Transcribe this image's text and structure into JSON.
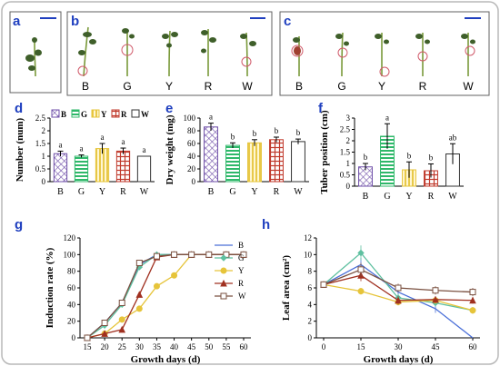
{
  "panels": {
    "a": {
      "letter": "a"
    },
    "b": {
      "letter": "b",
      "labels": [
        "B",
        "G",
        "Y",
        "R",
        "W"
      ]
    },
    "c": {
      "letter": "c",
      "labels": [
        "B",
        "G",
        "Y",
        "R",
        "W"
      ]
    }
  },
  "colors": {
    "scale_bar": "#1f3fbf",
    "tuber_circle": "#d05a6a",
    "B": "#6f4fa8",
    "G": "#2fb86a",
    "Y": "#e6c43a",
    "R": "#c0392b",
    "W": "#333333",
    "frame": "#b8b8b8",
    "panel_box": "#606060"
  },
  "chart_data": [
    {
      "panel": "d",
      "type": "bar",
      "categories": [
        "B",
        "G",
        "Y",
        "R",
        "W"
      ],
      "values": [
        1.1,
        1.0,
        1.3,
        1.2,
        1.0
      ],
      "errors": [
        0.1,
        0.05,
        0.2,
        0.12,
        0.0
      ],
      "sig": [
        "a",
        "a",
        "a",
        "a",
        "a"
      ],
      "ylabel": "Number (num)",
      "ylim": [
        0,
        2.5
      ],
      "yticks": [
        "0",
        "0.5",
        "1",
        "1.5",
        "2",
        "2.5"
      ],
      "legend": [
        "B",
        "G",
        "Y",
        "R",
        "W"
      ]
    },
    {
      "panel": "e",
      "type": "bar",
      "categories": [
        "B",
        "G",
        "Y",
        "R",
        "W"
      ],
      "values": [
        86,
        57,
        61,
        66,
        63
      ],
      "errors": [
        6,
        4,
        5,
        4,
        4
      ],
      "sig": [
        "a",
        "b",
        "b",
        "b",
        "b"
      ],
      "ylabel": "Dry weight (mg)",
      "ylim": [
        0,
        100
      ],
      "yticks": [
        "0",
        "20",
        "40",
        "60",
        "80",
        "100"
      ]
    },
    {
      "panel": "f",
      "type": "bar",
      "categories": [
        "B",
        "G",
        "Y",
        "R",
        "W"
      ],
      "values": [
        0.85,
        2.2,
        0.72,
        0.68,
        1.42
      ],
      "errors": [
        0.15,
        0.55,
        0.35,
        0.3,
        0.45
      ],
      "sig": [
        "b",
        "a",
        "b",
        "b",
        "ab"
      ],
      "ylabel": "Tuber position (cm)",
      "ylim": [
        0,
        3
      ],
      "yticks": [
        "0",
        "0.5",
        "1",
        "1.5",
        "2",
        "2.5",
        "3"
      ]
    },
    {
      "panel": "g",
      "type": "line",
      "x": [
        15,
        20,
        25,
        30,
        35,
        40,
        45,
        50,
        55,
        60
      ],
      "xticks": [
        "15",
        "20",
        "25",
        "30",
        "35",
        "40",
        "45",
        "50",
        "55",
        "60"
      ],
      "series": [
        {
          "name": "B",
          "values": [
            0,
            18,
            42,
            88,
            100,
            100,
            100,
            100,
            100,
            100
          ]
        },
        {
          "name": "G",
          "values": [
            0,
            15,
            40,
            85,
            100,
            100,
            100,
            100,
            100,
            100
          ]
        },
        {
          "name": "Y",
          "values": [
            0,
            5,
            22,
            35,
            62,
            75,
            100,
            100,
            100,
            100
          ]
        },
        {
          "name": "R",
          "values": [
            0,
            5,
            10,
            52,
            97,
            100,
            100,
            100,
            100,
            100
          ]
        },
        {
          "name": "W",
          "values": [
            0,
            18,
            42,
            90,
            98,
            100,
            100,
            100,
            100,
            100
          ]
        }
      ],
      "xlabel": "Growth days (d)",
      "ylabel": "Induction rate (%)",
      "ylim": [
        0,
        120
      ],
      "yticks": [
        "0",
        "20",
        "40",
        "60",
        "80",
        "100",
        "120"
      ],
      "legend": [
        "B",
        "G",
        "Y",
        "R",
        "W"
      ]
    },
    {
      "panel": "h",
      "type": "line",
      "x": [
        0,
        15,
        30,
        45,
        60
      ],
      "xticks": [
        "0",
        "15",
        "30",
        "45",
        "60"
      ],
      "series": [
        {
          "name": "B",
          "values": [
            6.4,
            8.8,
            5.5,
            3.5,
            0
          ]
        },
        {
          "name": "G",
          "values": [
            6.4,
            10.2,
            4.8,
            4.2,
            3.3
          ]
        },
        {
          "name": "Y",
          "values": [
            6.4,
            5.6,
            4.3,
            4.5,
            3.3
          ]
        },
        {
          "name": "R",
          "values": [
            6.4,
            7.5,
            4.5,
            4.6,
            4.5
          ]
        },
        {
          "name": "W",
          "values": [
            6.4,
            8.2,
            6.0,
            5.7,
            5.5
          ]
        }
      ],
      "errors": [
        [
          0.2,
          0.8,
          0.5,
          0.5,
          0
        ],
        [
          0.2,
          0.9,
          0.5,
          0.4,
          0.4
        ],
        [
          0.2,
          0.4,
          0.4,
          0.4,
          0.4
        ],
        [
          0.2,
          0.7,
          0.5,
          0.4,
          0.4
        ],
        [
          0.2,
          0.8,
          0.5,
          0.5,
          0.5
        ]
      ],
      "xlabel": "Growth days (d)",
      "ylabel": "Leaf area (cm²)",
      "ylim": [
        0,
        12
      ],
      "yticks": [
        "0",
        "2",
        "4",
        "6",
        "8",
        "10",
        "12"
      ]
    }
  ]
}
